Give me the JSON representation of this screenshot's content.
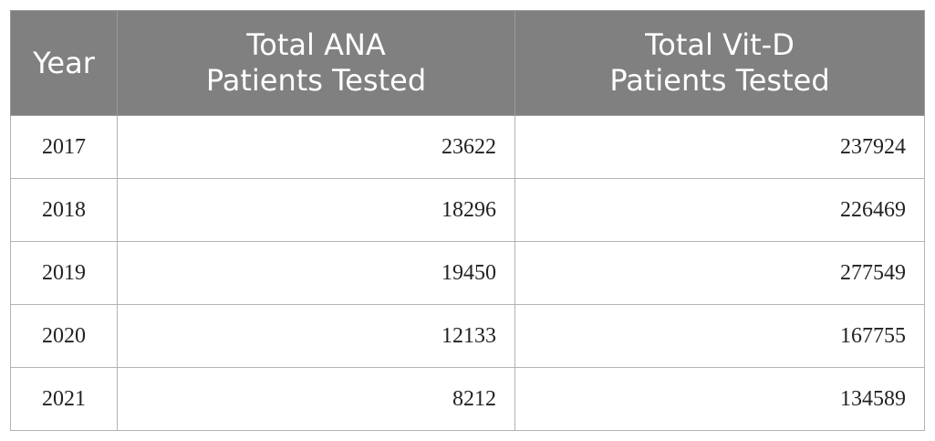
{
  "table": {
    "headers": [
      [
        "Year"
      ],
      [
        "Total ANA",
        "Patients Tested"
      ],
      [
        "Total Vit-D",
        "Patients Tested"
      ]
    ],
    "rows": [
      [
        2017,
        23622,
        237924
      ],
      [
        2018,
        18296,
        226469
      ],
      [
        2019,
        19450,
        277549
      ],
      [
        2020,
        12133,
        167755
      ],
      [
        2021,
        8212,
        134589
      ]
    ]
  }
}
